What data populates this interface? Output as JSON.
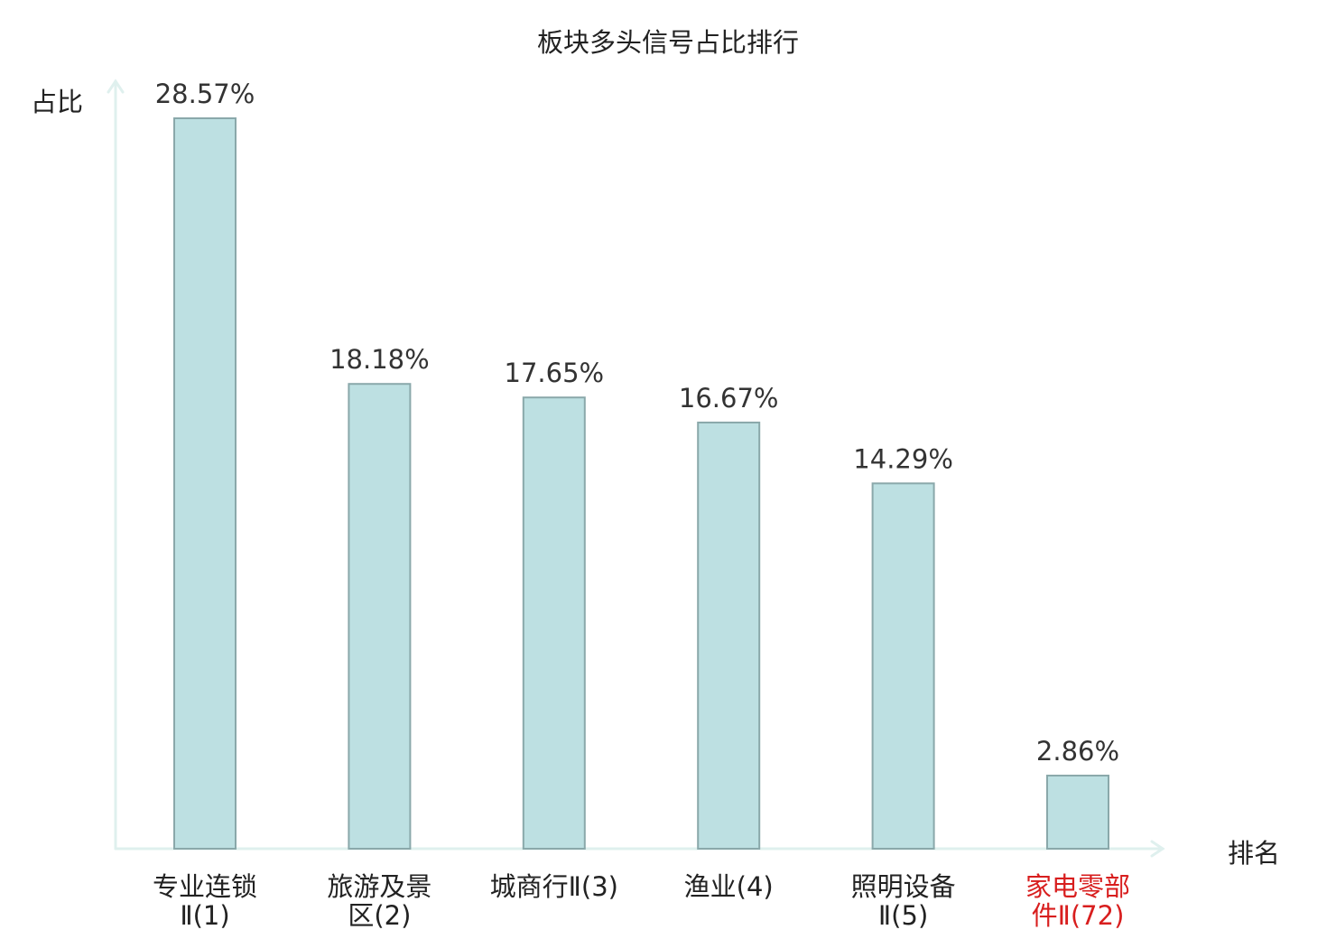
{
  "chart_data": {
    "type": "bar",
    "title": "板块多头信号占比排行",
    "ylabel": "占比",
    "xlabel": "排名",
    "categories": [
      {
        "line1": "专业连锁",
        "line2": "Ⅱ(1)"
      },
      {
        "line1": "旅游及景",
        "line2": "区(2)"
      },
      {
        "line1": "城商行Ⅱ(3)",
        "line2": ""
      },
      {
        "line1": "渔业(4)",
        "line2": ""
      },
      {
        "line1": "照明设备",
        "line2": "Ⅱ(5)"
      },
      {
        "line1": "家电零部",
        "line2": "件Ⅱ(72)"
      }
    ],
    "values": [
      28.57,
      18.18,
      17.65,
      16.67,
      14.29,
      2.86
    ],
    "value_labels": [
      "28.57%",
      "18.18%",
      "17.65%",
      "16.67%",
      "14.29%",
      "2.86%"
    ],
    "highlight_index": 5,
    "ylim": [
      0,
      30
    ],
    "grid": false,
    "colors": {
      "bar_fill": "#bde0e2",
      "bar_stroke": "#8aa8aa",
      "axis": "#dff0ee",
      "highlight_text": "#d81e1e"
    }
  }
}
